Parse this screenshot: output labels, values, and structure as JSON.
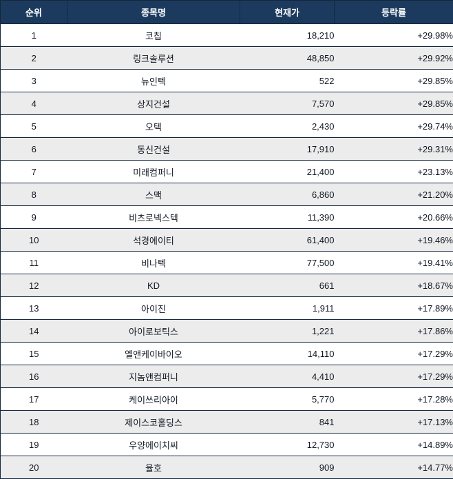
{
  "colors": {
    "header_bg": "#1b3a5e",
    "header_text": "#ffffff",
    "row_bg": "#ffffff",
    "row_alt_bg": "#ececec",
    "border": "#14273c",
    "text": "#111722"
  },
  "chart_data": {
    "type": "table",
    "columns": [
      "순위",
      "종목명",
      "현재가",
      "등락률"
    ],
    "column_keys": [
      "rank",
      "name",
      "price",
      "change"
    ],
    "rows": [
      [
        "1",
        "코칩",
        "18,210",
        "+29.98%"
      ],
      [
        "2",
        "링크솔루션",
        "48,850",
        "+29.92%"
      ],
      [
        "3",
        "뉴인텍",
        "522",
        "+29.85%"
      ],
      [
        "4",
        "상지건설",
        "7,570",
        "+29.85%"
      ],
      [
        "5",
        "오텍",
        "2,430",
        "+29.74%"
      ],
      [
        "6",
        "동신건설",
        "17,910",
        "+29.31%"
      ],
      [
        "7",
        "미래컴퍼니",
        "21,400",
        "+23.13%"
      ],
      [
        "8",
        "스맥",
        "6,860",
        "+21.20%"
      ],
      [
        "9",
        "비츠로넥스텍",
        "11,390",
        "+20.66%"
      ],
      [
        "10",
        "석경에이티",
        "61,400",
        "+19.46%"
      ],
      [
        "11",
        "비나텍",
        "77,500",
        "+19.41%"
      ],
      [
        "12",
        "KD",
        "661",
        "+18.67%"
      ],
      [
        "13",
        "아이진",
        "1,911",
        "+17.89%"
      ],
      [
        "14",
        "아이로보틱스",
        "1,221",
        "+17.86%"
      ],
      [
        "15",
        "엘앤케이바이오",
        "14,110",
        "+17.29%"
      ],
      [
        "16",
        "지놈앤컴퍼니",
        "4,410",
        "+17.29%"
      ],
      [
        "17",
        "케이쓰리아이",
        "5,770",
        "+17.28%"
      ],
      [
        "18",
        "제이스코홀딩스",
        "841",
        "+17.13%"
      ],
      [
        "19",
        "우양에이치씨",
        "12,730",
        "+14.89%"
      ],
      [
        "20",
        "율호",
        "909",
        "+14.77%"
      ]
    ]
  }
}
